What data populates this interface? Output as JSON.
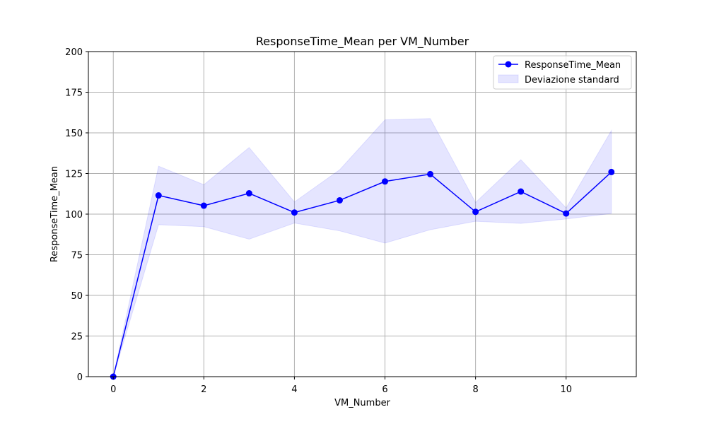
{
  "chart_data": {
    "type": "line",
    "title": "ResponseTime_Mean per VM_Number",
    "xlabel": "VM_Number",
    "ylabel": "ResponseTime_Mean",
    "xlim": [
      -0.55,
      11.55
    ],
    "ylim": [
      0,
      200
    ],
    "xticks": [
      0,
      2,
      4,
      6,
      8,
      10
    ],
    "yticks": [
      0,
      25,
      50,
      75,
      100,
      125,
      150,
      175,
      200
    ],
    "grid": true,
    "legend_position": "top-right",
    "x": [
      0,
      1,
      2,
      3,
      4,
      5,
      6,
      7,
      8,
      9,
      10,
      11
    ],
    "series": [
      {
        "name": "ResponseTime_Mean",
        "kind": "line-markers",
        "color": "#0000ff",
        "values": [
          0,
          111.5,
          105.2,
          112.8,
          101.0,
          108.5,
          120.1,
          124.6,
          101.4,
          113.9,
          100.4,
          125.9
        ]
      }
    ],
    "band": {
      "name": "Deviazione standard",
      "color": "#0000ff",
      "opacity": 0.1,
      "lower": [
        0,
        93.5,
        92.3,
        84.6,
        94.5,
        89.7,
        82.2,
        90.4,
        95.6,
        94.3,
        97.0,
        100.4
      ],
      "upper": [
        0,
        129.5,
        118.1,
        141.0,
        107.5,
        127.3,
        158.0,
        158.8,
        107.2,
        133.5,
        103.8,
        151.4
      ]
    }
  }
}
